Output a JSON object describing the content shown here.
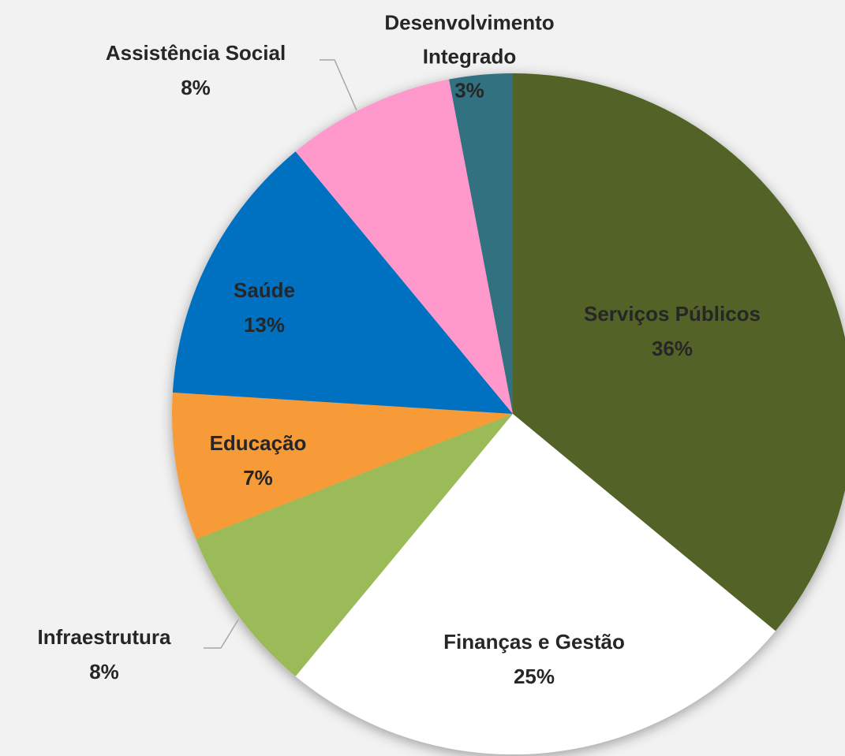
{
  "chart_data": {
    "type": "pie",
    "categories": [
      "Serviços Públicos",
      "Finanças e Gestão",
      "Infraestrutura",
      "Educação",
      "Saúde",
      "Assistência Social",
      "Desenvolvimento Integrado"
    ],
    "values": [
      36,
      25,
      8,
      7,
      13,
      8,
      3
    ],
    "value_labels": [
      "36%",
      "25%",
      "8%",
      "7%",
      "13%",
      "8%",
      "3%"
    ],
    "colors": [
      "#536227",
      "#ffffff",
      "#9bbb59",
      "#f79a37",
      "#0070c0",
      "#ff99cc",
      "#31717f"
    ]
  }
}
